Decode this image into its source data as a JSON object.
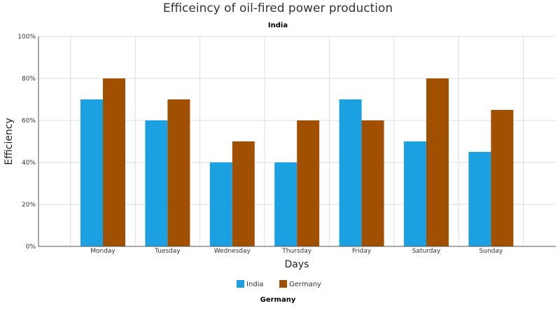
{
  "chart_data": {
    "type": "bar",
    "title": "Efficeincy of oil-fired power production",
    "subtitle": "India",
    "caption": "Germany",
    "xlabel": "Days",
    "ylabel": "Efficiency",
    "categories": [
      "Monday",
      "Tuesday",
      "Wednesday",
      "Thursday",
      "Friday",
      "Saturday",
      "Sunday"
    ],
    "series": [
      {
        "name": "India",
        "color": "#1ba1e2",
        "values": [
          70,
          60,
          40,
          40,
          70,
          50,
          45
        ]
      },
      {
        "name": "Germany",
        "color": "#a05000",
        "values": [
          80,
          70,
          50,
          60,
          60,
          80,
          65
        ]
      }
    ],
    "ylim": [
      0,
      100
    ],
    "yticks": [
      0,
      20,
      40,
      60,
      80,
      100
    ],
    "ytick_labels": [
      "0%",
      "20%",
      "40%",
      "60%",
      "80%",
      "100%"
    ],
    "grid": true,
    "legend_position": "bottom"
  }
}
